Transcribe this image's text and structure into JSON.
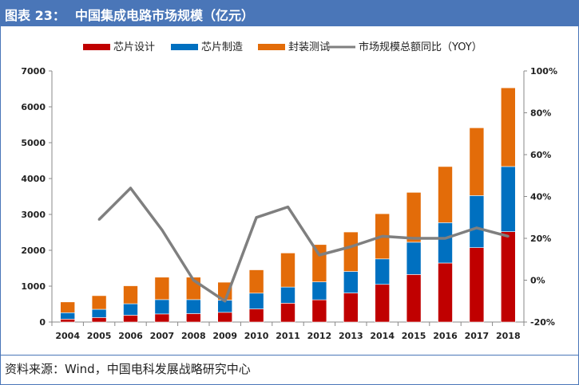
{
  "header": {
    "figure_label": "图表 23：",
    "title": "中国集成电路市场规模（亿元）"
  },
  "source": "资料来源：Wind，中国电科发展战略研究中心",
  "colors": {
    "design": "#c00000",
    "manufacturing": "#0070c0",
    "packaging": "#e36c09",
    "yoy": "#7f7f7f",
    "title_bar": "#4a76b8"
  },
  "chart_data": {
    "type": "bar",
    "stacked": true,
    "categories": [
      "2004",
      "2005",
      "2006",
      "2007",
      "2008",
      "2009",
      "2010",
      "2011",
      "2012",
      "2013",
      "2014",
      "2015",
      "2016",
      "2017",
      "2018"
    ],
    "series": [
      {
        "name": "芯片设计",
        "axis": "left",
        "values": [
          80,
          125,
          190,
          225,
          235,
          270,
          365,
          525,
          620,
          810,
          1050,
          1325,
          1645,
          2075,
          2520
        ]
      },
      {
        "name": "芯片制造",
        "axis": "left",
        "values": [
          180,
          230,
          320,
          400,
          390,
          340,
          440,
          450,
          500,
          600,
          710,
          900,
          1125,
          1450,
          1815
        ]
      },
      {
        "name": "封装测试",
        "axis": "left",
        "values": [
          300,
          380,
          500,
          625,
          625,
          500,
          650,
          950,
          1040,
          1100,
          1260,
          1390,
          1565,
          1890,
          2195
        ]
      }
    ],
    "line_series": {
      "name": "市场规模总额同比（YOY）",
      "axis": "right",
      "values": [
        null,
        29,
        44,
        24,
        0,
        -10,
        30,
        35,
        12,
        16,
        21,
        20,
        20,
        25,
        21
      ]
    },
    "ylim": [
      0,
      7000
    ],
    "yticks": [
      "0",
      "1000",
      "2000",
      "3000",
      "4000",
      "5000",
      "6000",
      "7000"
    ],
    "y2lim": [
      -20,
      100
    ],
    "y2ticks": [
      "-20%",
      "0%",
      "20%",
      "40%",
      "60%",
      "80%",
      "100%"
    ],
    "legend_position": "top",
    "grid": false
  }
}
